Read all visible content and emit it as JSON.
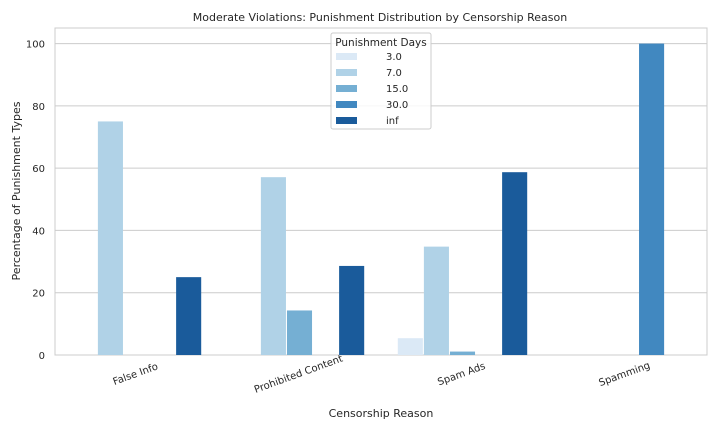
{
  "chart_data": {
    "type": "bar",
    "title": "Moderate Violations: Punishment Distribution by Censorship Reason",
    "xlabel": "Censorship Reason",
    "ylabel": "Percentage of Punishment Types",
    "categories": [
      "False Info",
      "Prohibited Content",
      "Spam Ads",
      "Spamming"
    ],
    "ylim": [
      0,
      105
    ],
    "yticks": [
      0,
      20,
      40,
      60,
      80,
      100
    ],
    "grid": true,
    "legend": {
      "title": "Punishment Days",
      "position": "top-center"
    },
    "series": [
      {
        "name": "3.0",
        "color": "#dbe9f6",
        "values": [
          0,
          0,
          5.4,
          0
        ]
      },
      {
        "name": "7.0",
        "color": "#b0d2e7",
        "values": [
          75,
          57.1,
          34.8,
          0
        ]
      },
      {
        "name": "15.0",
        "color": "#75afd3",
        "values": [
          0,
          14.3,
          1.1,
          0
        ]
      },
      {
        "name": "30.0",
        "color": "#4188c0",
        "values": [
          0,
          0,
          0,
          100
        ]
      },
      {
        "name": "inf",
        "color": "#1a5b9b",
        "values": [
          25,
          28.6,
          58.7,
          0
        ]
      }
    ]
  }
}
